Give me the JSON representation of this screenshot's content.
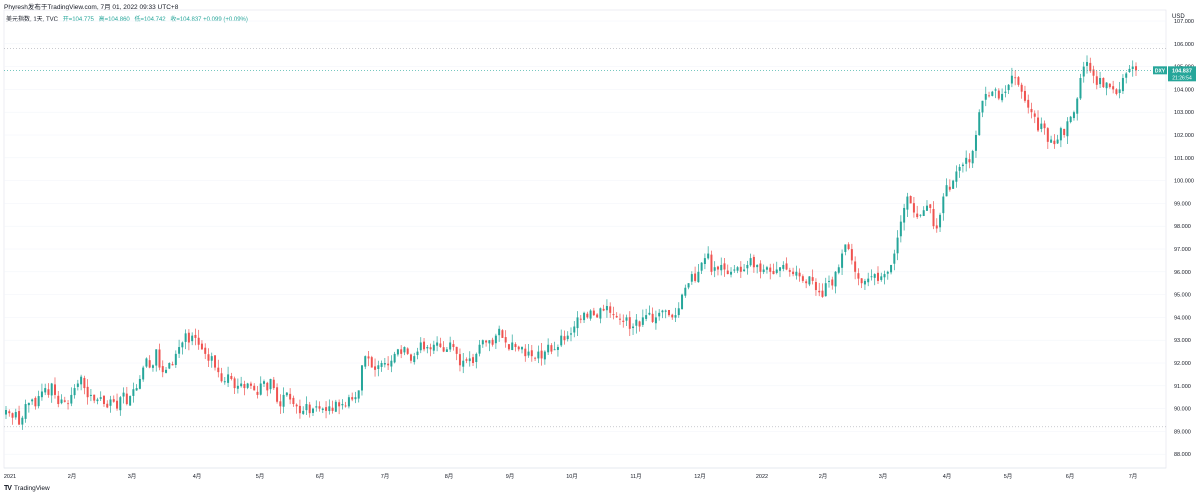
{
  "header": {
    "title": "Phyresh发布于TradingView.com,  7月 01, 2022 09:33 UTC+8"
  },
  "legend": {
    "symbol": "美元指数, 1天, TVC",
    "open": "开=104.775",
    "high": "高=104.860",
    "low": "低=104.742",
    "close": "收=104.837 +0.099 (+0.09%)"
  },
  "price_tag": {
    "ticker": "DXY",
    "price": "104.837",
    "countdown": "21:26:54"
  },
  "footer": {
    "logo": "TV",
    "brand": "TradingView"
  },
  "colors": {
    "up": "#26a69a",
    "down": "#ef5350",
    "price_line": "#26a69a",
    "grid": "#f0f3fa"
  },
  "chart_data": {
    "type": "candlestick",
    "symbol": "美元指数",
    "currency_label": "USD",
    "y_ticks": [
      "88.000",
      "89.000",
      "90.000",
      "91.000",
      "92.000",
      "93.000",
      "94.000",
      "95.000",
      "96.000",
      "97.000",
      "98.000",
      "99.000",
      "100.000",
      "101.000",
      "102.000",
      "103.000",
      "104.000",
      "105.000",
      "106.000",
      "107.000"
    ],
    "ylim": [
      87.9,
      107.6
    ],
    "x_ticks": [
      "2021",
      "2月",
      "3月",
      "4月",
      "5月",
      "6月",
      "7月",
      "8月",
      "9月",
      "10月",
      "11月",
      "12月",
      "2022",
      "2月",
      "3月",
      "4月",
      "5月",
      "6月",
      "7月"
    ],
    "last_price": 104.837,
    "reference_lines": [
      105.79,
      89.2
    ],
    "series": [
      {
        "date": "2021-01",
        "close_path": [
          89.94,
          89.8,
          89.6,
          89.85,
          89.3,
          89.6,
          90.2,
          90.25,
          90.4,
          90.1,
          90.55,
          90.75,
          90.9,
          90.6,
          91.1,
          90.6,
          90.2,
          90.4,
          90.3,
          90.2,
          90.6
        ]
      },
      {
        "date": "2021-02",
        "close_path": [
          90.9,
          91.1,
          91.4,
          90.9,
          90.5,
          90.6,
          90.35,
          90.4,
          90.5,
          90.2,
          90.05,
          90.4,
          90.3,
          90.0,
          90.5,
          90.7,
          90.2,
          90.55,
          90.85,
          90.9
        ]
      },
      {
        "date": "2021-03",
        "close_path": [
          91.3,
          91.8,
          92.2,
          91.8,
          91.9,
          92.6,
          91.8,
          91.6,
          91.7,
          92.0,
          91.9,
          92.4,
          92.7,
          92.9,
          93.3,
          92.9,
          93.2,
          93.1
        ]
      },
      {
        "date": "2021-04",
        "close_path": [
          92.8,
          92.6,
          92.4,
          92.1,
          92.3,
          91.8,
          91.6,
          91.2,
          91.2,
          91.5,
          91.3,
          90.9,
          91.0,
          91.1,
          90.9,
          91.1,
          91.0,
          90.8,
          90.6,
          91.1,
          91.2
        ]
      },
      {
        "date": "2021-05",
        "close_path": [
          90.8,
          91.3,
          90.9,
          90.3,
          90.1,
          90.6,
          90.7,
          90.4,
          90.2,
          90.1,
          89.8,
          89.9,
          90.2,
          89.8,
          90.0,
          90.1,
          90.0,
          90.0,
          89.9,
          90.1
        ]
      },
      {
        "date": "2021-06",
        "close_path": [
          89.9,
          90.3,
          90.1,
          90.2,
          90.1,
          90.5,
          90.4,
          90.5,
          90.8,
          91.9,
          92.3,
          92.2,
          91.8,
          91.7,
          91.9,
          92.0,
          92.0,
          91.9,
          92.1,
          92.4,
          92.6,
          92.4
        ]
      },
      {
        "date": "2021-07",
        "close_path": [
          92.7,
          92.4,
          92.1,
          92.3,
          92.5,
          92.9,
          92.6,
          92.7,
          92.6,
          92.8,
          92.9,
          92.7,
          92.5,
          92.6,
          92.9,
          92.7,
          92.4,
          91.9,
          92.1,
          92.1
        ]
      },
      {
        "date": "2021-08",
        "close_path": [
          92.2,
          92.0,
          92.4,
          92.8,
          93.0,
          92.9,
          93.0,
          92.8,
          93.2,
          93.5,
          93.1,
          92.9,
          92.6,
          92.9,
          92.7,
          92.6,
          92.7,
          92.3,
          92.5,
          92.3,
          92.2,
          92.5
        ]
      },
      {
        "date": "2021-09",
        "close_path": [
          92.2,
          92.5,
          92.8,
          92.5,
          92.6,
          92.7,
          93.2,
          93.0,
          93.2,
          93.3,
          93.6,
          94.0,
          93.9,
          94.2,
          94.0,
          94.3,
          94.1,
          94.0,
          94.4,
          94.3,
          94.5
        ]
      },
      {
        "date": "2021-10",
        "close_path": [
          94.2,
          94.1,
          94.0,
          93.9,
          93.8,
          94.0,
          93.5,
          93.6,
          93.9,
          93.6,
          94.0,
          94.1,
          94.2,
          93.8,
          94.0,
          94.2,
          94.3,
          94.3,
          94.1,
          94.0,
          94.1
        ]
      },
      {
        "date": "2021-11",
        "close_path": [
          94.4,
          95.0,
          95.3,
          95.5,
          95.9,
          95.6,
          96.0,
          96.4,
          96.6,
          96.8,
          96.0,
          96.2,
          96.1,
          96.3,
          96.1,
          95.9,
          96.0,
          96.1,
          96.2,
          96.0,
          96.1,
          96.3
        ]
      },
      {
        "date": "2021-12",
        "close_path": [
          96.6,
          96.2,
          96.3,
          96.0,
          96.1,
          96.2,
          96.0,
          95.9,
          96.1,
          96.2,
          96.3,
          96.1,
          96.0,
          95.9,
          96.0,
          95.8,
          95.6,
          95.5,
          95.8,
          95.6,
          95.2,
          95.1,
          94.9
        ]
      },
      {
        "date": "2022-02",
        "close_path": [
          95.5,
          95.6,
          95.4,
          96.0,
          96.2,
          96.8,
          97.2,
          97.0,
          96.5,
          96.0,
          95.7,
          95.5,
          95.6,
          95.7,
          95.8,
          95.9,
          95.6,
          95.8,
          95.9,
          96.0,
          96.3,
          96.8
        ]
      },
      {
        "date": "2022-03",
        "close_path": [
          97.5,
          98.2,
          98.8,
          99.3,
          99.0,
          98.6,
          98.4,
          98.5,
          98.7,
          98.9,
          98.8,
          98.0,
          97.9,
          98.5,
          99.3,
          99.8,
          99.6,
          100.0,
          100.4,
          100.6,
          100.7,
          101.0
        ]
      },
      {
        "date": "2022-04",
        "close_path": [
          100.8,
          101.3,
          102.0,
          103.0,
          103.5,
          103.8,
          103.7,
          103.9,
          104.0,
          103.6,
          103.8,
          103.9,
          104.2,
          104.6,
          104.5,
          104.2,
          103.9,
          103.5,
          103.2,
          103.0,
          102.8,
          102.2,
          102.5,
          102.3,
          101.7,
          101.8,
          101.6
        ]
      },
      {
        "date": "2022-06",
        "close_path": [
          101.8,
          102.3,
          102.0,
          102.6,
          102.8,
          103.0,
          103.6,
          104.5,
          105.0,
          105.2,
          104.8,
          104.6,
          104.2,
          104.5,
          104.1,
          104.3,
          104.1,
          104.0,
          103.8,
          104.0,
          104.5,
          104.7,
          104.9,
          105.0,
          104.837
        ]
      }
    ]
  }
}
